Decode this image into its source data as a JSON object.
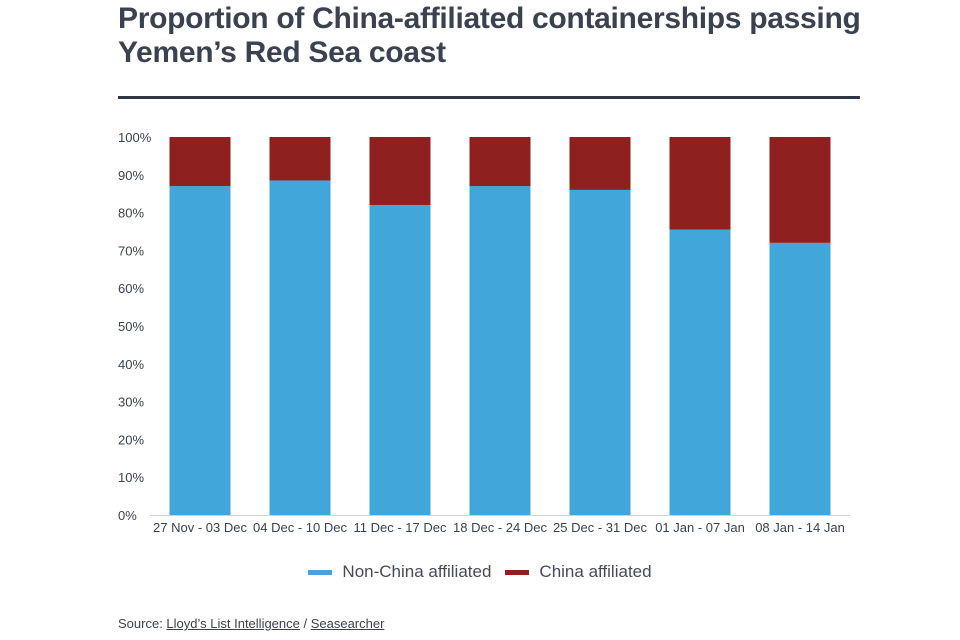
{
  "header": {
    "title_line1": "Proportion of China-affiliated containerships passing",
    "title_line2": "Yemen’s Red Sea coast"
  },
  "source": {
    "prefix": "Source: ",
    "link1": "Lloyd’s List Intelligence",
    "separator": " / ",
    "link2": "Seasearcher"
  },
  "colors": {
    "non_china": "#41a7db",
    "china": "#8f2020"
  },
  "chart_data": {
    "type": "bar",
    "stacked": true,
    "title": "Proportion of China-affiliated containerships passing Yemen’s Red Sea coast",
    "categories": [
      "27 Nov - 03 Dec",
      "04 Dec - 10 Dec",
      "11 Dec - 17 Dec",
      "18 Dec - 24 Dec",
      "25 Dec - 31 Dec",
      "01 Jan - 07 Jan",
      "08 Jan - 14 Jan"
    ],
    "series": [
      {
        "name": "Non-China affiliated",
        "color": "#41a7db",
        "values": [
          87,
          88.5,
          82,
          87,
          86,
          75.5,
          72
        ]
      },
      {
        "name": "China affiliated",
        "color": "#8f2020",
        "values": [
          13,
          11.5,
          18,
          13,
          14,
          24.5,
          28
        ]
      }
    ],
    "yticks": [
      "0%",
      "10%",
      "20%",
      "30%",
      "40%",
      "50%",
      "60%",
      "70%",
      "80%",
      "90%",
      "100%"
    ],
    "ylim": [
      0,
      100
    ],
    "bar_top": 100,
    "legend": "bottom",
    "grid": false
  }
}
